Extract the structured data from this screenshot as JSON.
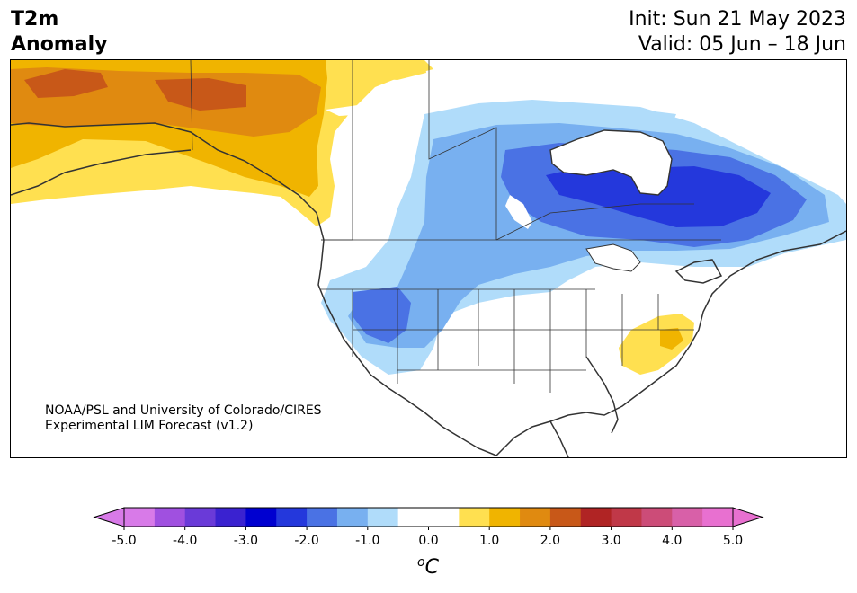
{
  "header": {
    "title_line1": "T2m",
    "title_line2": "Anomaly",
    "init": "Init: Sun 21 May 2023",
    "valid": "Valid: 05 Jun – 18 Jun"
  },
  "credit": {
    "line1": "NOAA/PSL and University of Colorado/CIRES",
    "line2": "Experimental LIM Forecast (v1.2)"
  },
  "colorbar": {
    "unit_base": "C",
    "unit_sup": "o",
    "tick_labels": [
      "-5.0",
      "-4.0",
      "-3.0",
      "-2.0",
      "-1.0",
      "0.0",
      "1.0",
      "2.0",
      "3.0",
      "4.0",
      "5.0"
    ],
    "colors": [
      "#d87ae8",
      "#a050e0",
      "#6a3ad8",
      "#3a22d0",
      "#0000d0",
      "#2438dc",
      "#4a72e4",
      "#78b0f0",
      "#b0dcfa",
      "#ffffff",
      "#ffffff",
      "#ffe050",
      "#f0b400",
      "#e08a10",
      "#c85818",
      "#b02424",
      "#c03848",
      "#cc4c78",
      "#d860a8",
      "#e870d0"
    ],
    "under_color": "#d87ae8",
    "over_color": "#e870d0"
  },
  "colors": {
    "cold_light": "#b0dcfa",
    "cold_mid": "#78b0f0",
    "cold_strong": "#4a72e4",
    "cold_core": "#2438dc",
    "warm_light": "#ffe050",
    "warm_mid": "#f0b400",
    "warm_strong": "#e08a10",
    "warm_core": "#c85818"
  }
}
